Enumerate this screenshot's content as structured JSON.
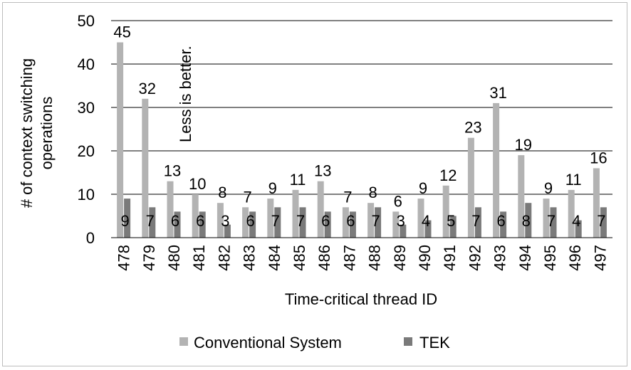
{
  "chart_data": {
    "type": "bar",
    "categories": [
      "478",
      "479",
      "480",
      "481",
      "482",
      "483",
      "484",
      "485",
      "486",
      "487",
      "488",
      "489",
      "490",
      "491",
      "492",
      "493",
      "494",
      "495",
      "496",
      "497"
    ],
    "series": [
      {
        "name": "Conventional System",
        "color": "#b3b3b3",
        "values": [
          45,
          32,
          13,
          10,
          8,
          7,
          9,
          11,
          13,
          7,
          8,
          6,
          9,
          12,
          23,
          31,
          19,
          9,
          11,
          16
        ]
      },
      {
        "name": "TEK",
        "color": "#7a7a7a",
        "values": [
          9,
          7,
          6,
          6,
          3,
          6,
          7,
          7,
          6,
          6,
          7,
          3,
          4,
          5,
          7,
          6,
          8,
          7,
          4,
          7
        ]
      }
    ],
    "ylabel_line1": "# of context switching",
    "ylabel_line2": "operations",
    "xlabel": "Time-critical thread ID",
    "ylim": [
      0,
      50
    ],
    "yticks": [
      0,
      10,
      20,
      30,
      40,
      50
    ],
    "annotation": "Less is better.",
    "grid": "horizontal",
    "legend_position": "bottom"
  }
}
